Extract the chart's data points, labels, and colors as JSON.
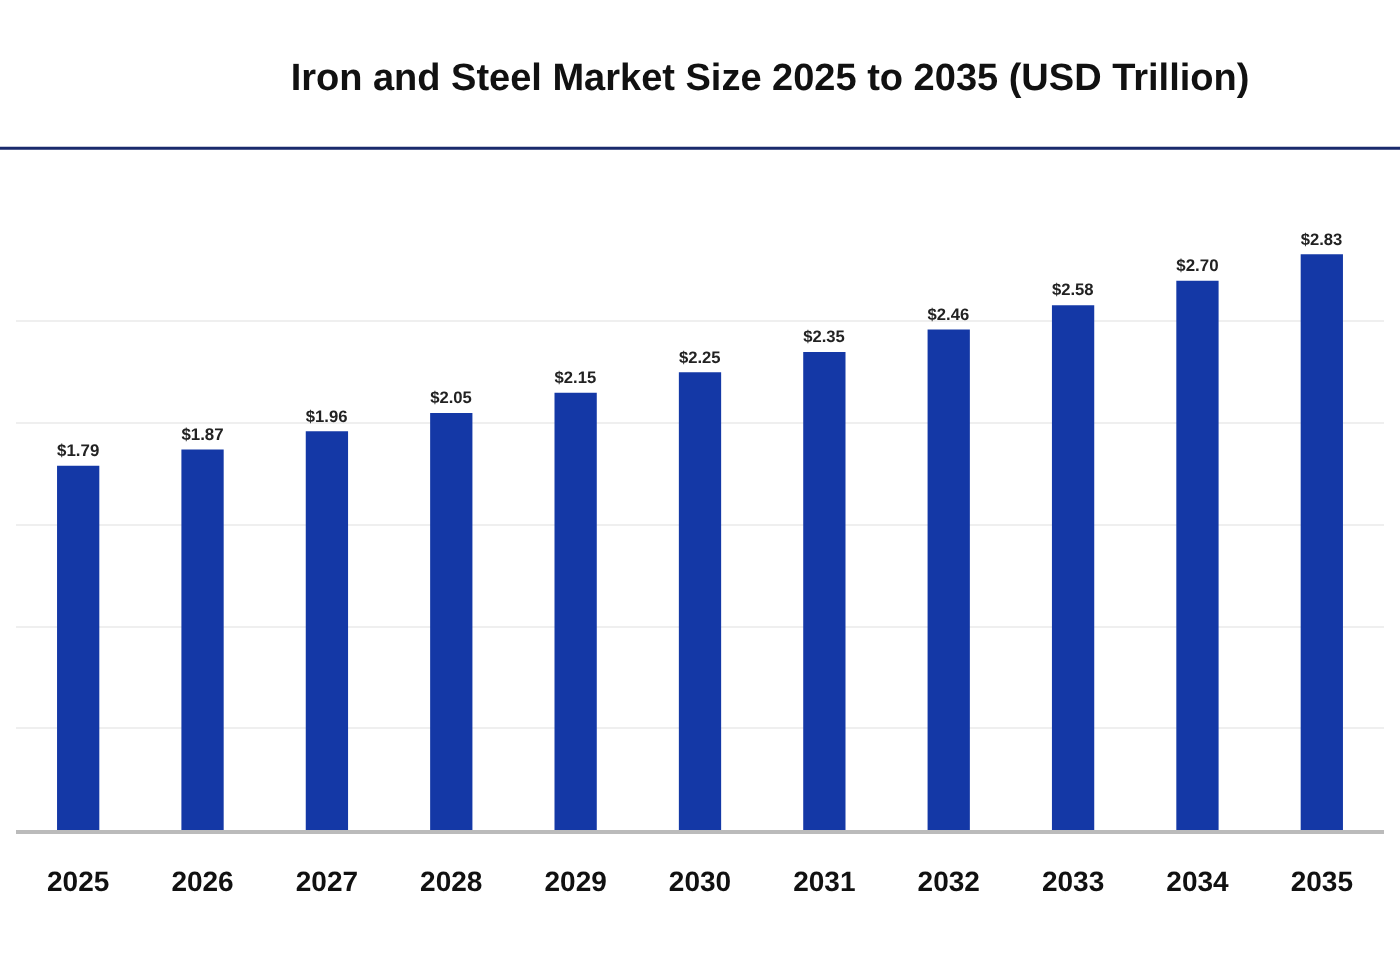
{
  "chart_data": {
    "type": "bar",
    "title": "Iron and Steel Market Size 2025 to 2035 (USD Trillion)",
    "categories": [
      "2025",
      "2026",
      "2027",
      "2028",
      "2029",
      "2030",
      "2031",
      "2032",
      "2033",
      "2034",
      "2035"
    ],
    "values": [
      1.79,
      1.87,
      1.96,
      2.05,
      2.15,
      2.25,
      2.35,
      2.46,
      2.58,
      2.7,
      2.83
    ],
    "value_labels": [
      "$1.79",
      "$1.87",
      "$1.96",
      "$2.05",
      "$2.15",
      "$2.25",
      "$2.35",
      "$2.46",
      "$2.58",
      "$2.70",
      "$2.83"
    ],
    "color": "#1438a6",
    "grid": "y",
    "tick_labels": "x"
  }
}
